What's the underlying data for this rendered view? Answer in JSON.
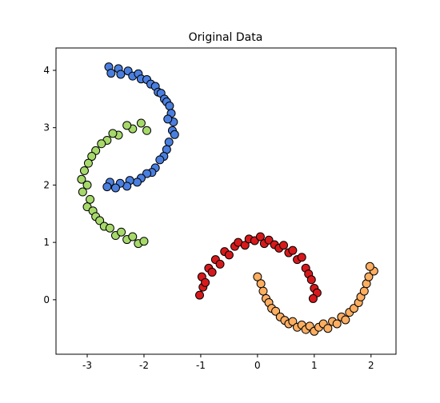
{
  "chart_data": {
    "type": "scatter",
    "title": "Original Data",
    "xlim": [
      -3.55,
      2.44
    ],
    "ylim": [
      -0.95,
      4.39
    ],
    "xticks": [
      -3,
      -2,
      -1,
      0,
      1,
      2
    ],
    "yticks": [
      0,
      1,
      2,
      3,
      4
    ],
    "series": [
      {
        "color": "#4a7fe0",
        "x": [
          -2.62,
          -2.58,
          -2.45,
          -2.41,
          -2.28,
          -2.2,
          -2.1,
          -2.05,
          -1.95,
          -1.88,
          -1.8,
          -1.75,
          -1.7,
          -1.64,
          -1.6,
          -1.55,
          -1.52,
          -1.48,
          -1.58,
          -1.5,
          -1.46,
          -1.56,
          -1.6,
          -1.65,
          -1.72,
          -1.8,
          -1.86,
          -1.95,
          -2.05,
          -2.12,
          -2.25,
          -2.3,
          -2.42,
          -2.5,
          -2.6,
          -2.65
        ],
        "values": [
          4.06,
          3.95,
          4.03,
          3.93,
          3.99,
          3.9,
          3.94,
          3.85,
          3.84,
          3.76,
          3.72,
          3.62,
          3.6,
          3.5,
          3.45,
          3.38,
          3.25,
          3.1,
          3.15,
          2.95,
          2.88,
          2.75,
          2.62,
          2.5,
          2.44,
          2.3,
          2.22,
          2.2,
          2.12,
          2.05,
          2.08,
          1.98,
          2.03,
          1.95,
          2.05,
          1.97
        ]
      },
      {
        "color": "#a6d96a",
        "x": [
          -1.95,
          -2.05,
          -2.2,
          -2.3,
          -2.45,
          -2.55,
          -2.65,
          -2.75,
          -2.85,
          -2.92,
          -2.98,
          -3.05,
          -3.1,
          -3.0,
          -3.08,
          -2.95,
          -3.0,
          -2.9,
          -2.85,
          -2.78,
          -2.7,
          -2.6,
          -2.5,
          -2.4,
          -2.3,
          -2.2,
          -2.1,
          -2.0
        ],
        "values": [
          2.95,
          3.08,
          2.98,
          3.04,
          2.87,
          2.9,
          2.78,
          2.72,
          2.6,
          2.5,
          2.38,
          2.25,
          2.1,
          2.0,
          1.88,
          1.75,
          1.62,
          1.55,
          1.45,
          1.38,
          1.28,
          1.25,
          1.12,
          1.18,
          1.05,
          1.1,
          0.98,
          1.02
        ]
      },
      {
        "color": "#d7191c",
        "x": [
          -1.02,
          -0.96,
          -0.98,
          -0.92,
          -0.86,
          -0.8,
          -0.74,
          -0.66,
          -0.58,
          -0.5,
          -0.4,
          -0.34,
          -0.22,
          -0.15,
          -0.05,
          0.05,
          0.12,
          0.2,
          0.3,
          0.38,
          0.46,
          0.55,
          0.62,
          0.7,
          0.78,
          0.85,
          0.9,
          0.95,
          1.0,
          1.05,
          0.98
        ],
        "values": [
          0.08,
          0.22,
          0.4,
          0.3,
          0.55,
          0.48,
          0.7,
          0.62,
          0.84,
          0.78,
          0.93,
          1.0,
          0.95,
          1.06,
          1.03,
          1.1,
          0.98,
          1.04,
          0.96,
          0.9,
          0.95,
          0.82,
          0.86,
          0.7,
          0.74,
          0.55,
          0.45,
          0.35,
          0.2,
          0.12,
          0.02
        ]
      },
      {
        "color": "#fdae61",
        "x": [
          0.0,
          0.06,
          0.1,
          0.15,
          0.2,
          0.25,
          0.32,
          0.4,
          0.48,
          0.55,
          0.62,
          0.7,
          0.78,
          0.85,
          0.92,
          1.0,
          1.08,
          1.16,
          1.24,
          1.32,
          1.4,
          1.48,
          1.55,
          1.62,
          1.7,
          1.78,
          1.82,
          1.88,
          1.92,
          1.96,
          2.05,
          1.98
        ],
        "values": [
          0.4,
          0.28,
          0.15,
          0.02,
          -0.05,
          -0.15,
          -0.2,
          -0.3,
          -0.36,
          -0.42,
          -0.38,
          -0.48,
          -0.44,
          -0.52,
          -0.46,
          -0.55,
          -0.48,
          -0.42,
          -0.5,
          -0.38,
          -0.42,
          -0.3,
          -0.35,
          -0.22,
          -0.15,
          -0.05,
          0.05,
          0.15,
          0.28,
          0.4,
          0.5,
          0.58
        ]
      }
    ]
  }
}
